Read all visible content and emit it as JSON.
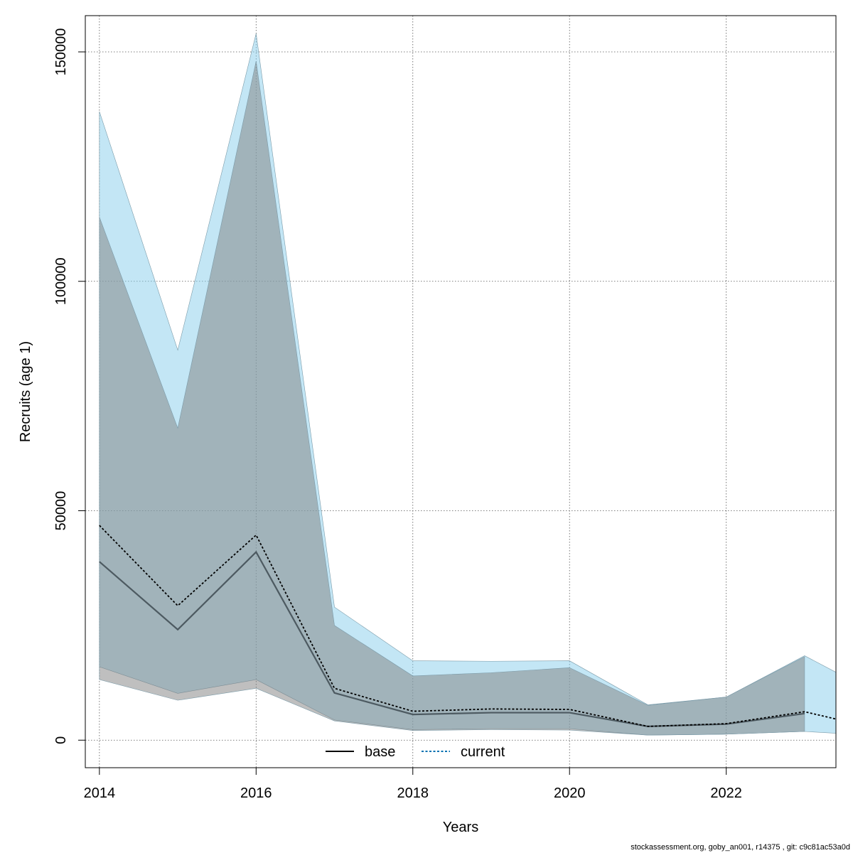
{
  "chart_data": {
    "type": "line",
    "title": "",
    "xlabel": "Years",
    "ylabel": "Recruits (age 1)",
    "xlim": [
      2013.82,
      2023.4
    ],
    "ylim": [
      -6000,
      157900
    ],
    "x_ticks": [
      2014,
      2016,
      2018,
      2020,
      2022
    ],
    "x_tick_labels": [
      "2014",
      "2016",
      "2018",
      "2020",
      "2022"
    ],
    "y_ticks": [
      0,
      50000,
      100000,
      150000
    ],
    "y_tick_labels": [
      "0",
      "50000",
      "100000",
      "150000"
    ],
    "grid": true,
    "legend_position": "bottom",
    "x": [
      2014,
      2015,
      2016,
      2017,
      2018,
      2019,
      2020,
      2021,
      2022,
      2023,
      2023.4
    ],
    "series": [
      {
        "name": "base",
        "color": "#000000",
        "line_style": "solid",
        "band_color": "#808080",
        "values": [
          38900,
          24100,
          41000,
          10300,
          5600,
          6000,
          6000,
          3000,
          3500,
          5800,
          null
        ],
        "lower": [
          13200,
          8700,
          11300,
          4200,
          2100,
          2300,
          2200,
          1100,
          1300,
          1900,
          null
        ],
        "upper": [
          114000,
          68000,
          148000,
          25000,
          14000,
          14700,
          15800,
          7600,
          9400,
          18200,
          null
        ]
      },
      {
        "name": "current",
        "color": "#0072b2",
        "line_style": "dotted",
        "band_color": "#87ceeb",
        "values": [
          46800,
          29300,
          44700,
          11300,
          6300,
          6800,
          6700,
          3000,
          3600,
          6200,
          4600
        ],
        "lower": [
          16000,
          10200,
          13200,
          4400,
          2300,
          2500,
          2500,
          1100,
          1300,
          1900,
          1500
        ],
        "upper": [
          137000,
          85000,
          154000,
          29000,
          17300,
          17200,
          17300,
          7700,
          9400,
          18400,
          14800
        ]
      }
    ]
  },
  "footer": "stockassessment.org, goby_an001, r14375 , git: c9c81ac53a0d"
}
